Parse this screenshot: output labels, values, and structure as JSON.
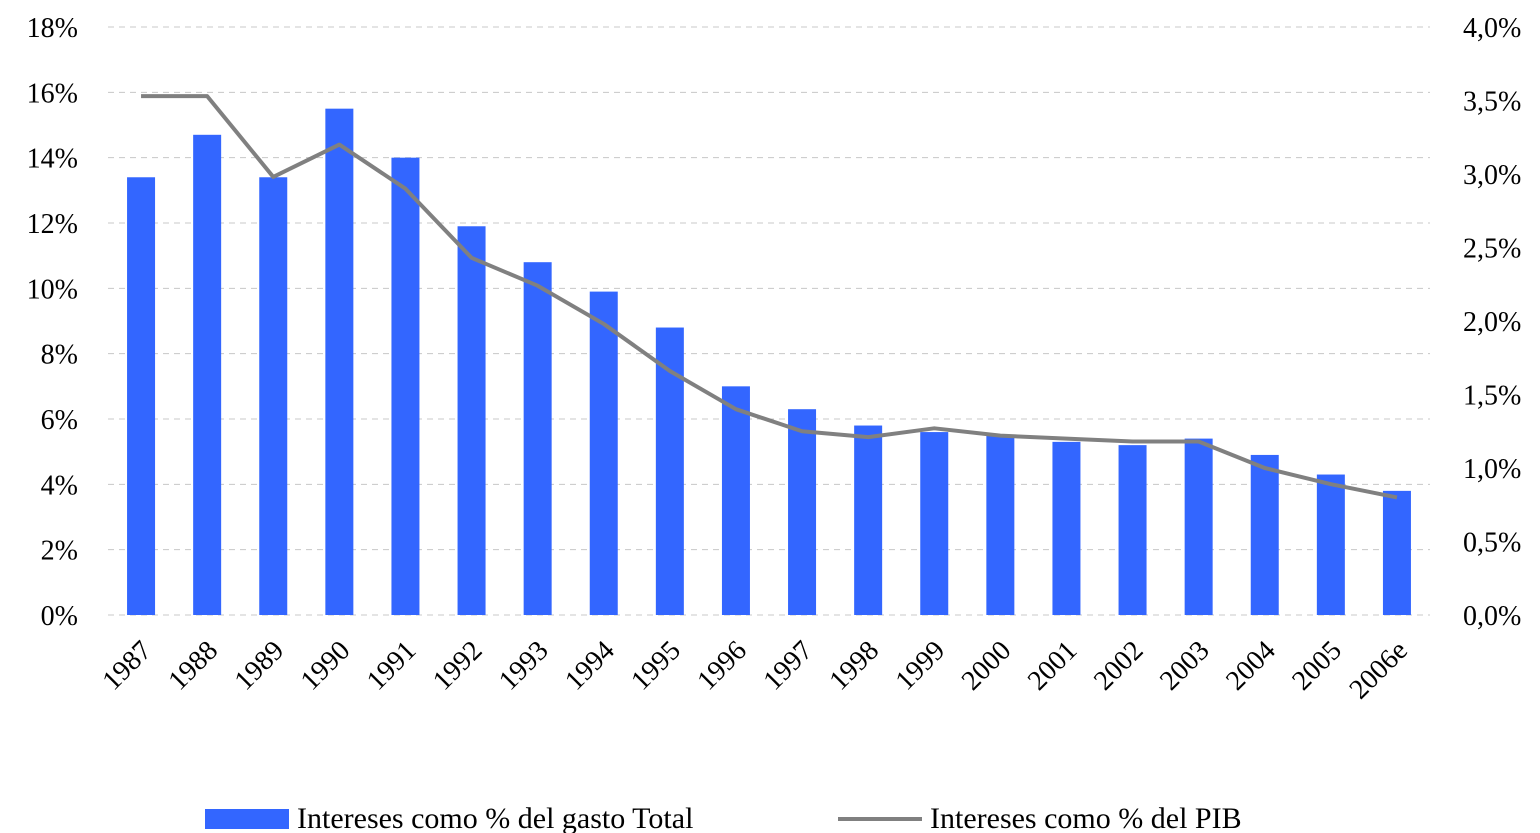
{
  "chart_data": {
    "type": "bar",
    "categories": [
      "1987",
      "1988",
      "1989",
      "1990",
      "1991",
      "1992",
      "1993",
      "1994",
      "1995",
      "1996",
      "1997",
      "1998",
      "1999",
      "2000",
      "2001",
      "2002",
      "2003",
      "2004",
      "2005",
      "2006e"
    ],
    "series": [
      {
        "name": "Intereses como % del gasto Total",
        "type": "bar",
        "axis": "left",
        "color": "#3366FF",
        "values": [
          13.4,
          14.7,
          13.4,
          15.5,
          14.0,
          11.9,
          10.8,
          9.9,
          8.8,
          7.0,
          6.3,
          5.8,
          5.6,
          5.5,
          5.3,
          5.2,
          5.4,
          4.9,
          4.3,
          3.8
        ]
      },
      {
        "name": "Intereses como % del PIB",
        "type": "line",
        "axis": "right",
        "color": "#808080",
        "values": [
          3.53,
          3.53,
          2.98,
          3.2,
          2.9,
          2.43,
          2.24,
          1.98,
          1.66,
          1.4,
          1.25,
          1.21,
          1.27,
          1.22,
          1.2,
          1.18,
          1.18,
          1.0,
          0.89,
          0.8
        ]
      }
    ],
    "y_left": {
      "ylim": [
        0,
        18
      ],
      "ticks": [
        0,
        2,
        4,
        6,
        8,
        10,
        12,
        14,
        16,
        18
      ],
      "tick_labels": [
        "0%",
        "2%",
        "4%",
        "6%",
        "8%",
        "10%",
        "12%",
        "14%",
        "16%",
        "18%"
      ]
    },
    "y_right": {
      "ylim": [
        0,
        4.0
      ],
      "ticks": [
        0,
        0.5,
        1.0,
        1.5,
        2.0,
        2.5,
        3.0,
        3.5,
        4.0
      ],
      "tick_labels": [
        "0,0%",
        "0,5%",
        "1,0%",
        "1,5%",
        "2,0%",
        "2,5%",
        "3,0%",
        "3,5%",
        "4,0%"
      ]
    },
    "grid": true,
    "legend_position": "bottom"
  }
}
